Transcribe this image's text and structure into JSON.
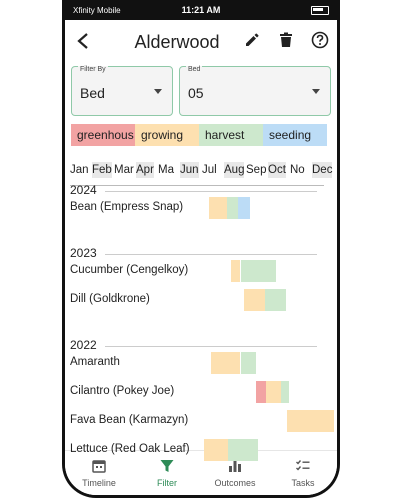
{
  "status": {
    "carrier": "Xfinity Mobile",
    "time": "11:21 AM"
  },
  "header": {
    "title": "Alderwood",
    "back_icon": "back-arrow-icon",
    "edit_icon": "pencil-icon",
    "delete_icon": "trash-icon",
    "help_icon": "help-icon"
  },
  "filters": {
    "filter_by": {
      "label": "Filter By",
      "value": "Bed"
    },
    "bed": {
      "label": "Bed",
      "value": "05"
    }
  },
  "legend": [
    {
      "label": "greenhous",
      "color": "#f2a3a3"
    },
    {
      "label": "growing",
      "color": "#fde0b0"
    },
    {
      "label": "harvest",
      "color": "#cde8cd"
    },
    {
      "label": "seeding",
      "color": "#bcdcf6"
    }
  ],
  "months": [
    "Jan",
    "Feb",
    "Mar",
    "Apr",
    "Ma",
    "Jun",
    "Jul",
    "Aug",
    "Sep",
    "Oct",
    "No",
    "Dec"
  ],
  "groups": [
    {
      "year": "2024",
      "rows": [
        {
          "label": "Bean (Empress Snap)",
          "segments": [
            {
              "phase": "growing",
              "start": 6.3,
              "end": 7.15
            },
            {
              "phase": "harvest",
              "start": 7.15,
              "end": 7.65
            },
            {
              "phase": "seeding",
              "start": 7.65,
              "end": 8.2
            }
          ]
        }
      ]
    },
    {
      "year": "2023",
      "rows": [
        {
          "label": "Cucumber (Cengelkoy)",
          "segments": [
            {
              "phase": "growing",
              "start": 7.3,
              "end": 7.75
            },
            {
              "phase": "harvest",
              "start": 7.75,
              "end": 9.35
            }
          ]
        },
        {
          "label": "Dill (Goldkrone)",
          "segments": [
            {
              "phase": "growing",
              "start": 7.9,
              "end": 8.85
            },
            {
              "phase": "harvest",
              "start": 8.85,
              "end": 9.8
            }
          ]
        }
      ]
    },
    {
      "year": "2022",
      "rows": [
        {
          "label": "Amaranth",
          "segments": [
            {
              "phase": "growing",
              "start": 6.4,
              "end": 7.75
            },
            {
              "phase": "harvest",
              "start": 7.75,
              "end": 8.45
            }
          ]
        },
        {
          "label": "Cilantro (Pokey Joe)",
          "segments": [
            {
              "phase": "greenhous",
              "start": 8.45,
              "end": 8.9
            },
            {
              "phase": "growing",
              "start": 8.9,
              "end": 9.6
            },
            {
              "phase": "harvest",
              "start": 9.6,
              "end": 9.95
            }
          ]
        },
        {
          "label": "Fava Bean (Karmazyn)",
          "segments": [
            {
              "phase": "growing",
              "start": 9.85,
              "end": 12.0
            }
          ]
        },
        {
          "label": "Lettuce (Red Oak Leaf)",
          "segments": [
            {
              "phase": "growing",
              "start": 6.1,
              "end": 7.2
            },
            {
              "phase": "harvest",
              "start": 7.2,
              "end": 8.55
            }
          ]
        }
      ]
    }
  ],
  "nav": [
    {
      "label": "Timeline",
      "icon": "calendar-icon",
      "active": false
    },
    {
      "label": "Filter",
      "icon": "filter-icon",
      "active": true
    },
    {
      "label": "Outcomes",
      "icon": "bar-chart-icon",
      "active": false
    },
    {
      "label": "Tasks",
      "icon": "checklist-icon",
      "active": false
    }
  ]
}
